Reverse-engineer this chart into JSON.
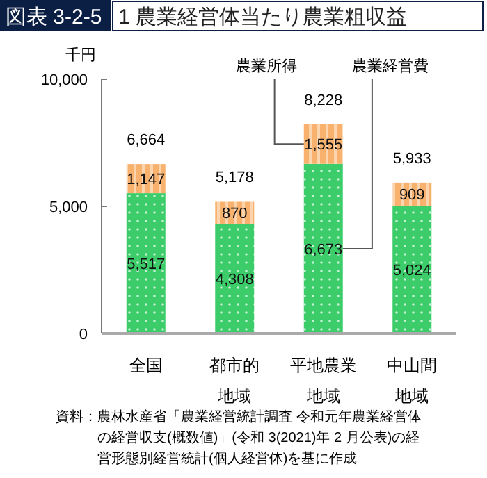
{
  "chart_data": {
    "type": "bar",
    "stacked": true,
    "subtitle": "図表 3-2-5",
    "title": "1 農業経営体当たり農業粗収益",
    "ylabel": "千円",
    "categories": [
      "全国",
      "都市的地域",
      "平地農業地域",
      "中山間地域"
    ],
    "series": [
      {
        "name": "農業経営費",
        "color": "#3dcc6a",
        "values": [
          5517,
          4308,
          6673,
          5024
        ],
        "value_labels": [
          "5,517",
          "4,308",
          "6,673",
          "5,024"
        ]
      },
      {
        "name": "農業所得",
        "color": "#f9b26e",
        "values": [
          1147,
          870,
          1555,
          909
        ],
        "value_labels": [
          "1,147",
          "870",
          "1,555",
          "909"
        ]
      }
    ],
    "totals": [
      "6,664",
      "5,178",
      "8,228",
      "5,933"
    ],
    "ylim": [
      0,
      10000
    ],
    "yticks": [
      {
        "value": 0,
        "label": "0"
      },
      {
        "value": 5000,
        "label": "5,000"
      },
      {
        "value": 10000,
        "label": "10,000"
      }
    ],
    "annotations": [
      "資料：農林水産省「農業経営統計調査 令和元年農業経営体の経営収支(概数値)」(令和 3(2021)年 2 月公表)の経営形態別経営統計(個人経営体)を基に作成"
    ]
  }
}
